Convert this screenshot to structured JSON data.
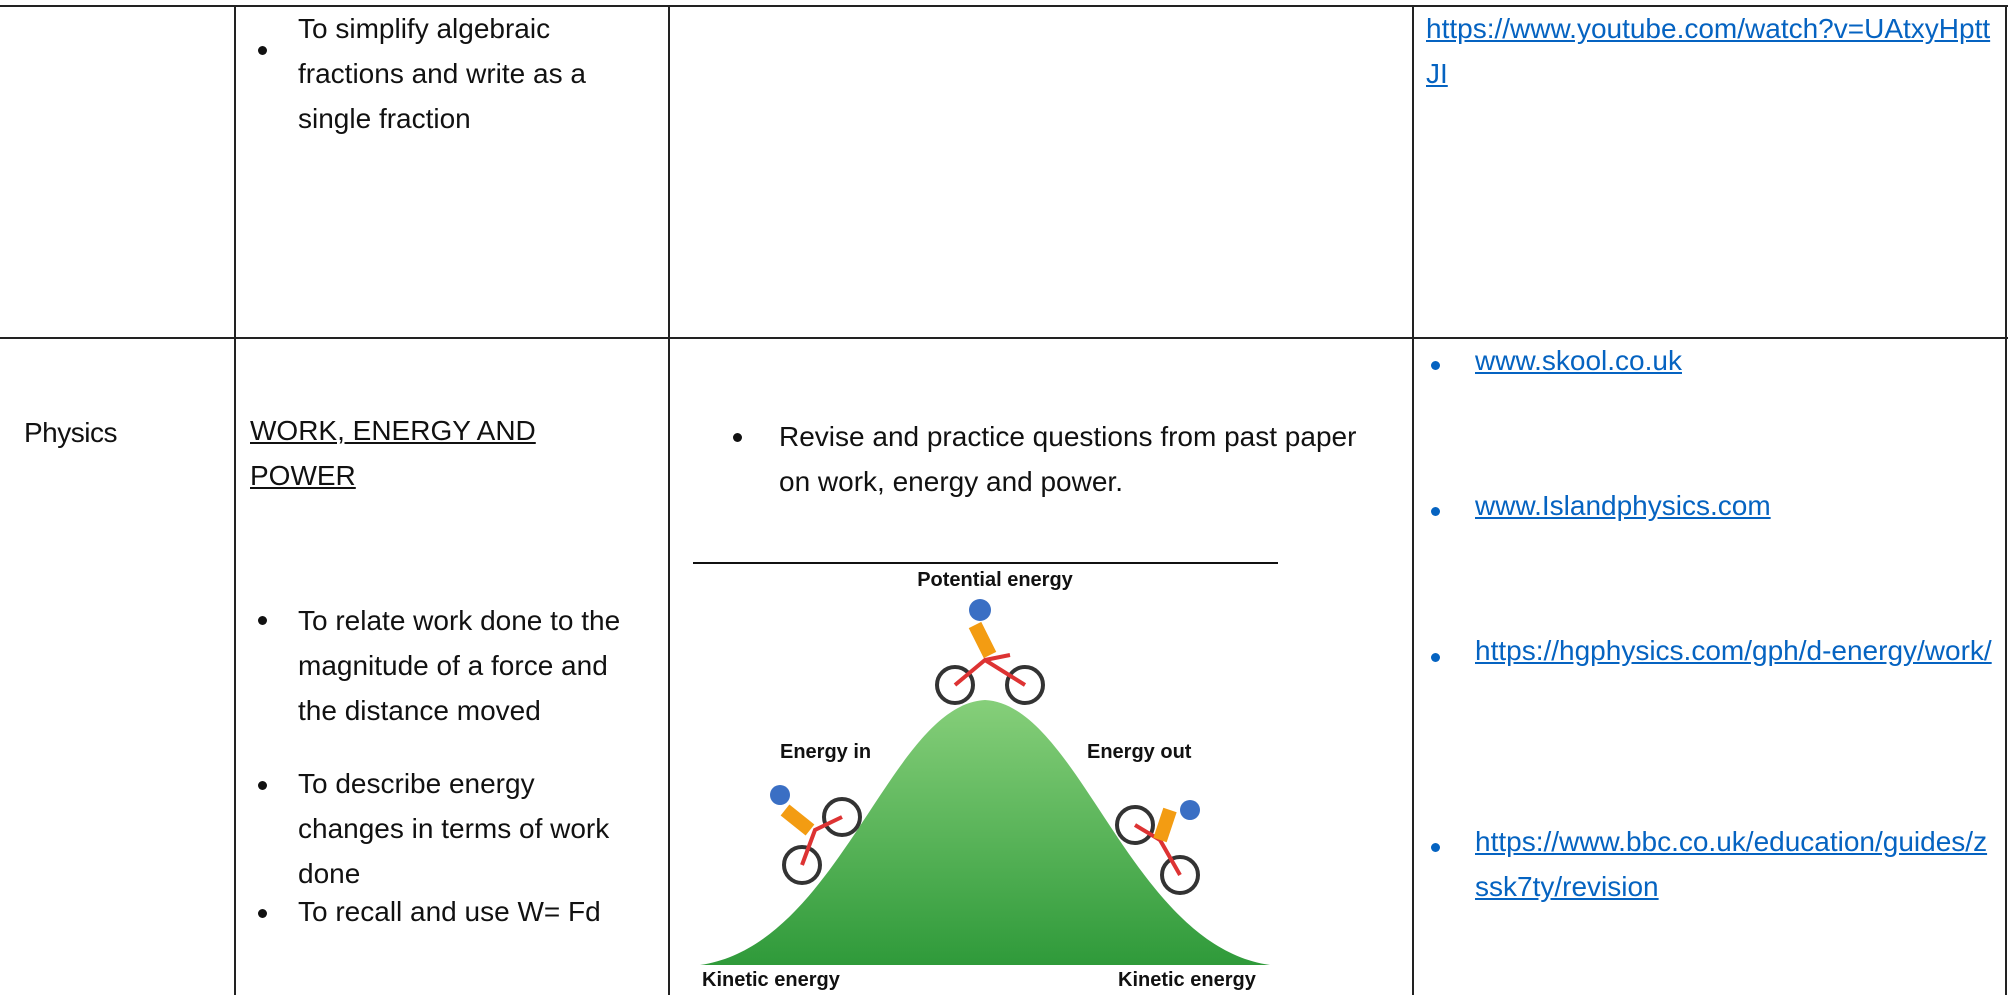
{
  "table": {
    "rows": [
      {
        "objectives": [
          "To simplify algebraic fractions and write as a single fraction"
        ],
        "links": [
          "https://www.youtube.com/watch?v=UAtxyHpttJI"
        ]
      },
      {
        "subject": "Physics",
        "topic": "WORK, ENERGY AND POWER",
        "objectives": [
          "To relate work done to the magnitude of a force and the distance moved",
          "To describe energy changes in terms of work done",
          "To recall and use W= Fd"
        ],
        "activity": "Revise and practice questions from past paper on work, energy and power.",
        "diagram": {
          "top": "Potential energy",
          "left": "Energy in",
          "right": "Energy out",
          "bottom_left": "Kinetic energy",
          "bottom_right": "Kinetic energy"
        },
        "links": [
          "www.skool.co.uk",
          "www.Islandphysics.com",
          "https://hgphysics.com/gph/d-energy/work/",
          "https://www.bbc.co.uk/education/guides/zssk7ty/revision"
        ]
      }
    ]
  }
}
